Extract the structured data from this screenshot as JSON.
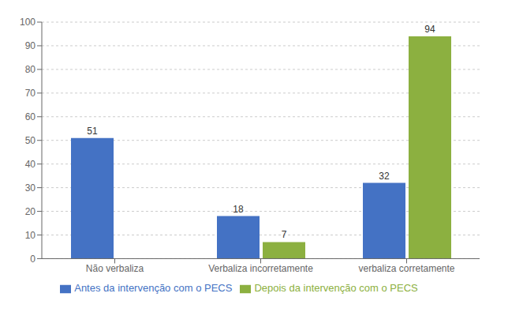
{
  "chart_data": {
    "type": "bar",
    "categories": [
      "Não verbaliza",
      "Verbaliza incorretamente",
      "verbaliza corretamente"
    ],
    "series": [
      {
        "name": "Antes da intervenção com o PECS",
        "color": "#4472C4",
        "values": [
          51,
          18,
          32
        ]
      },
      {
        "name": "Depois da intervenção com o PECS",
        "color": "#8CB040",
        "values": [
          0,
          7,
          94
        ]
      }
    ],
    "ylim": [
      0,
      100
    ],
    "yticks": [
      0,
      10,
      20,
      30,
      40,
      50,
      60,
      70,
      80,
      90,
      100
    ],
    "grid": true,
    "legend": "bottom",
    "data_labels": true
  }
}
